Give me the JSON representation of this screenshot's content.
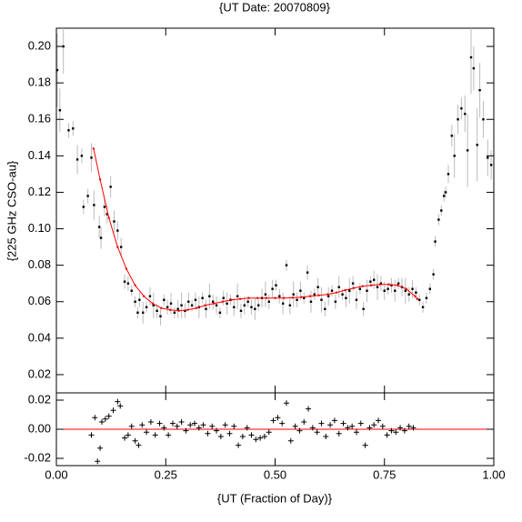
{
  "chart_data": [
    {
      "type": "scatter",
      "title": "{UT Date: 20070809}",
      "y_label": "{225 GHz CSO-au}",
      "xlim": [
        0,
        1
      ],
      "ylim": [
        0.01,
        0.21
      ],
      "yticks": [
        0.02,
        0.04,
        0.06,
        0.08,
        {
          "value": 0.1,
          "label": "0.10"
        },
        0.12,
        0.14,
        0.16,
        0.18,
        {
          "value": 0.2,
          "label": "0.20"
        }
      ],
      "points": {
        "color": "#000000",
        "error_color": "#bbbbbb",
        "x": [
          0.002,
          0.008,
          0.016,
          0.028,
          0.038,
          0.048,
          0.058,
          0.062,
          0.072,
          0.08,
          0.086,
          0.098,
          0.102,
          0.11,
          0.116,
          0.124,
          0.132,
          0.14,
          0.148,
          0.156,
          0.164,
          0.172,
          0.18,
          0.186,
          0.19,
          0.198,
          0.206,
          0.214,
          0.222,
          0.23,
          0.238,
          0.246,
          0.254,
          0.262,
          0.27,
          0.278,
          0.286,
          0.294,
          0.302,
          0.31,
          0.318,
          0.326,
          0.334,
          0.342,
          0.35,
          0.358,
          0.366,
          0.374,
          0.382,
          0.39,
          0.398,
          0.406,
          0.414,
          0.422,
          0.43,
          0.438,
          0.446,
          0.454,
          0.462,
          0.47,
          0.478,
          0.486,
          0.494,
          0.502,
          0.51,
          0.518,
          0.526,
          0.534,
          0.542,
          0.55,
          0.558,
          0.566,
          0.574,
          0.582,
          0.59,
          0.598,
          0.606,
          0.614,
          0.622,
          0.63,
          0.638,
          0.646,
          0.654,
          0.662,
          0.67,
          0.678,
          0.686,
          0.694,
          0.702,
          0.71,
          0.718,
          0.726,
          0.734,
          0.742,
          0.75,
          0.758,
          0.766,
          0.774,
          0.782,
          0.79,
          0.798,
          0.806,
          0.814,
          0.822,
          0.83,
          0.838,
          0.846,
          0.854,
          0.862,
          0.866,
          0.874,
          0.88,
          0.886,
          0.89,
          0.896,
          0.904,
          0.91,
          0.918,
          0.926,
          0.934,
          0.94,
          0.948,
          0.954,
          0.962,
          0.968,
          0.976,
          0.986,
          0.994
        ],
        "values": [
          0.187,
          0.165,
          0.2,
          0.154,
          0.155,
          0.138,
          0.14,
          0.112,
          0.118,
          0.139,
          0.113,
          0.101,
          0.095,
          0.112,
          0.108,
          0.123,
          0.104,
          0.099,
          0.09,
          0.071,
          0.07,
          0.066,
          0.06,
          0.054,
          0.061,
          0.054,
          0.057,
          0.063,
          0.058,
          0.055,
          0.052,
          0.061,
          0.057,
          0.059,
          0.054,
          0.056,
          0.058,
          0.055,
          0.06,
          0.058,
          0.061,
          0.057,
          0.062,
          0.056,
          0.063,
          0.06,
          0.058,
          0.054,
          0.062,
          0.059,
          0.061,
          0.057,
          0.063,
          0.055,
          0.058,
          0.06,
          0.057,
          0.056,
          0.058,
          0.062,
          0.064,
          0.06,
          0.067,
          0.069,
          0.063,
          0.059,
          0.08,
          0.058,
          0.064,
          0.061,
          0.066,
          0.062,
          0.076,
          0.06,
          0.064,
          0.068,
          0.061,
          0.056,
          0.063,
          0.066,
          0.06,
          0.068,
          0.064,
          0.062,
          0.066,
          0.07,
          0.061,
          0.067,
          0.056,
          0.066,
          0.071,
          0.072,
          0.068,
          0.07,
          0.066,
          0.067,
          0.069,
          0.066,
          0.07,
          0.068,
          0.066,
          0.064,
          0.067,
          0.065,
          0.061,
          0.057,
          0.062,
          0.067,
          0.075,
          0.093,
          0.105,
          0.11,
          0.118,
          0.12,
          0.13,
          0.151,
          0.14,
          0.16,
          0.166,
          0.163,
          0.143,
          0.194,
          0.188,
          0.146,
          0.176,
          0.16,
          0.139,
          0.135
        ],
        "errors": [
          0.02,
          0.012,
          0.015,
          0.004,
          0.004,
          0.008,
          0.004,
          0.004,
          0.004,
          0.008,
          0.008,
          0.006,
          0.006,
          0.005,
          0.005,
          0.006,
          0.006,
          0.005,
          0.005,
          0.004,
          0.004,
          0.003,
          0.003,
          0.003,
          0.004,
          0.006,
          0.003,
          0.005,
          0.007,
          0.004,
          0.005,
          0.003,
          0.004,
          0.006,
          0.003,
          0.005,
          0.007,
          0.004,
          0.005,
          0.003,
          0.004,
          0.006,
          0.003,
          0.005,
          0.007,
          0.004,
          0.005,
          0.003,
          0.004,
          0.006,
          0.003,
          0.005,
          0.007,
          0.004,
          0.005,
          0.003,
          0.004,
          0.006,
          0.003,
          0.005,
          0.007,
          0.004,
          0.005,
          0.003,
          0.004,
          0.006,
          0.003,
          0.005,
          0.007,
          0.004,
          0.005,
          0.003,
          0.004,
          0.006,
          0.003,
          0.005,
          0.007,
          0.004,
          0.005,
          0.003,
          0.004,
          0.006,
          0.003,
          0.005,
          0.007,
          0.004,
          0.005,
          0.003,
          0.004,
          0.006,
          0.003,
          0.005,
          0.007,
          0.004,
          0.005,
          0.003,
          0.004,
          0.006,
          0.003,
          0.005,
          0.007,
          0.004,
          0.005,
          0.003,
          0.003,
          0.003,
          0.003,
          0.003,
          0.003,
          0.003,
          0.003,
          0.003,
          0.003,
          0.003,
          0.005,
          0.006,
          0.012,
          0.008,
          0.006,
          0.01,
          0.02,
          0.02,
          0.012,
          0.02,
          0.015,
          0.01,
          0.01,
          0.008
        ]
      },
      "fit": {
        "color": "#ff0000",
        "x": [
          0.085,
          0.1,
          0.12,
          0.14,
          0.16,
          0.18,
          0.2,
          0.22,
          0.24,
          0.26,
          0.28,
          0.3,
          0.32,
          0.34,
          0.36,
          0.38,
          0.4,
          0.42,
          0.44,
          0.46,
          0.48,
          0.5,
          0.52,
          0.54,
          0.56,
          0.58,
          0.6,
          0.62,
          0.64,
          0.66,
          0.68,
          0.7,
          0.72,
          0.74,
          0.76,
          0.78,
          0.8,
          0.82,
          0.825
        ],
        "values": [
          0.144,
          0.127,
          0.106,
          0.09,
          0.078,
          0.069,
          0.063,
          0.059,
          0.0565,
          0.0555,
          0.055,
          0.0555,
          0.0565,
          0.058,
          0.059,
          0.06,
          0.061,
          0.0615,
          0.062,
          0.062,
          0.062,
          0.062,
          0.062,
          0.0622,
          0.0625,
          0.063,
          0.0635,
          0.064,
          0.065,
          0.0663,
          0.0675,
          0.0685,
          0.069,
          0.0695,
          0.0695,
          0.069,
          0.067,
          0.063,
          0.0615
        ]
      }
    },
    {
      "type": "residual",
      "x_label": "{UT (Fraction of Day)}",
      "xlim": [
        0,
        1
      ],
      "ylim": [
        -0.025,
        0.025
      ],
      "xticks": [
        {
          "value": 0,
          "label": "0.00"
        },
        0.25,
        {
          "value": 0.5,
          "label": "0.50"
        },
        0.75,
        {
          "value": 1,
          "label": "1.00"
        }
      ],
      "yticks": [
        -0.02,
        {
          "value": 0,
          "label": "0.00"
        },
        0.02
      ],
      "zero_color": "#ff0000",
      "color": "#000000",
      "x": [
        0.08,
        0.088,
        0.094,
        0.1,
        0.104,
        0.112,
        0.12,
        0.13,
        0.14,
        0.146,
        0.156,
        0.164,
        0.172,
        0.18,
        0.188,
        0.196,
        0.206,
        0.216,
        0.226,
        0.236,
        0.246,
        0.256,
        0.266,
        0.276,
        0.286,
        0.296,
        0.306,
        0.316,
        0.326,
        0.336,
        0.346,
        0.356,
        0.366,
        0.376,
        0.386,
        0.396,
        0.406,
        0.416,
        0.426,
        0.436,
        0.446,
        0.456,
        0.466,
        0.476,
        0.486,
        0.496,
        0.506,
        0.516,
        0.526,
        0.536,
        0.546,
        0.556,
        0.566,
        0.576,
        0.586,
        0.596,
        0.606,
        0.616,
        0.626,
        0.636,
        0.646,
        0.656,
        0.666,
        0.676,
        0.686,
        0.696,
        0.706,
        0.716,
        0.726,
        0.736,
        0.746,
        0.756,
        0.766,
        0.776,
        0.786,
        0.796,
        0.806,
        0.816
      ],
      "values": [
        -0.004,
        0.008,
        -0.022,
        -0.013,
        0.005,
        0.007,
        0.009,
        0.013,
        0.019,
        0.016,
        -0.006,
        -0.004,
        0.002,
        -0.008,
        -0.011,
        0.003,
        -0.002,
        0.005,
        -0.004,
        0.004,
        0.001,
        -0.004,
        0.004,
        0.002,
        0.005,
        -0.001,
        0.003,
        0.004,
        0.001,
        0.003,
        -0.003,
        0.002,
        -0.001,
        -0.005,
        0.003,
        -0.003,
        0.002,
        -0.011,
        -0.005,
        0.001,
        -0.004,
        -0.007,
        -0.006,
        -0.005,
        -0.002,
        0.006,
        0.008,
        0.004,
        0.018,
        -0.008,
        0.002,
        -0.001,
        0.005,
        0.014,
        0.001,
        -0.002,
        0.004,
        -0.005,
        0.003,
        0.006,
        -0.003,
        0.004,
        0.001,
        0.002,
        -0.002,
        0.004,
        -0.011,
        0.001,
        0.003,
        0.006,
        0.002,
        -0.004,
        -0.001,
        -0.002,
        0.001,
        -0.001,
        0.002,
        0.001
      ]
    }
  ]
}
